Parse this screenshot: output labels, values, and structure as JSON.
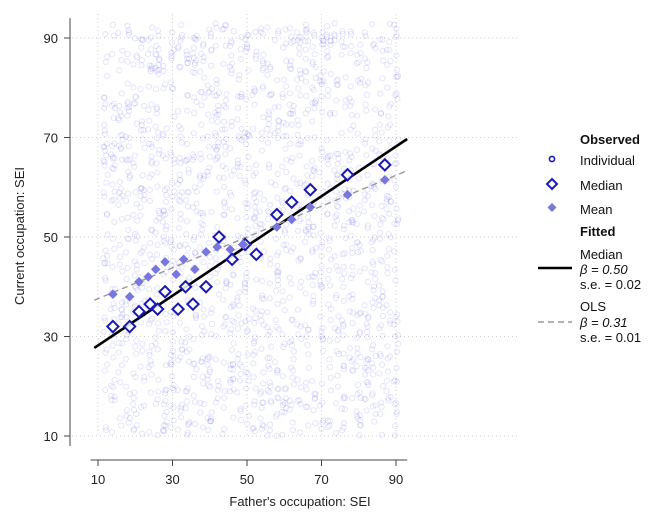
{
  "chart_data": {
    "type": "scatter",
    "xlabel": "Father's occupation: SEI",
    "ylabel": "Current occupation: SEI",
    "xlim": [
      8,
      93
    ],
    "ylim": [
      8,
      94
    ],
    "x_ticks": [
      "10",
      "30",
      "50",
      "70",
      "90"
    ],
    "y_ticks": [
      "10",
      "30",
      "50",
      "70",
      "90"
    ],
    "grid": true,
    "legend_position": "right",
    "legend": {
      "observed_heading": "Observed",
      "individual_label": "Individual",
      "median_label": "Median",
      "mean_label": "Mean",
      "fitted_heading": "Fitted",
      "median_fit_label": "Median",
      "median_fit_beta": "β = 0.50",
      "median_fit_se": "s.e. = 0.02",
      "ols_fit_label": "OLS",
      "ols_fit_beta": "β = 0.31",
      "ols_fit_se": "s.e. = 0.01"
    },
    "colors": {
      "individual": "#3333dd",
      "median": "#1a1ab0",
      "mean": "#7777dd",
      "median_fit": "#000000",
      "ols_fit": "#999999"
    },
    "individual_points": {
      "x_columns": [
        12,
        14,
        16,
        18,
        20,
        22,
        24,
        26,
        28,
        30,
        32,
        34,
        36,
        38,
        40,
        42,
        44,
        46,
        48,
        50,
        52,
        54,
        56,
        58,
        60,
        62,
        64,
        66,
        68,
        70,
        72,
        74,
        76,
        78,
        80,
        82,
        84,
        86,
        88,
        90
      ],
      "y_range": [
        10,
        93
      ]
    },
    "series": [
      {
        "name": "Median",
        "marker": "hollow-diamond",
        "points": [
          [
            14,
            32
          ],
          [
            18.5,
            32
          ],
          [
            21,
            35
          ],
          [
            24,
            36.5
          ],
          [
            26,
            35.5
          ],
          [
            28,
            39
          ],
          [
            31.5,
            35.5
          ],
          [
            33.5,
            40
          ],
          [
            35.5,
            36.5
          ],
          [
            39,
            40
          ],
          [
            42.5,
            50
          ],
          [
            46,
            45.5
          ],
          [
            49.5,
            48.5
          ],
          [
            52.5,
            46.5
          ],
          [
            58,
            54.5
          ],
          [
            62,
            57
          ],
          [
            67,
            59.5
          ],
          [
            77,
            62.5
          ],
          [
            87,
            64.5
          ]
        ]
      },
      {
        "name": "Mean",
        "marker": "filled-diamond",
        "points": [
          [
            14,
            38.5
          ],
          [
            18.5,
            38
          ],
          [
            21,
            41
          ],
          [
            23.5,
            42
          ],
          [
            25.5,
            43.5
          ],
          [
            28,
            45
          ],
          [
            31,
            42.5
          ],
          [
            33,
            45.5
          ],
          [
            36,
            43.5
          ],
          [
            39,
            47
          ],
          [
            42,
            48
          ],
          [
            45.5,
            47.5
          ],
          [
            49,
            48.5
          ],
          [
            58,
            52
          ],
          [
            62,
            53.5
          ],
          [
            67,
            56
          ],
          [
            77,
            58.5
          ],
          [
            87,
            61.5
          ]
        ]
      }
    ],
    "fits": [
      {
        "name": "Median",
        "intercept": 23.2,
        "slope": 0.5,
        "x_range": [
          9,
          93
        ]
      },
      {
        "name": "OLS",
        "intercept": 34.5,
        "slope": 0.31,
        "x_range": [
          9,
          93
        ]
      }
    ]
  }
}
